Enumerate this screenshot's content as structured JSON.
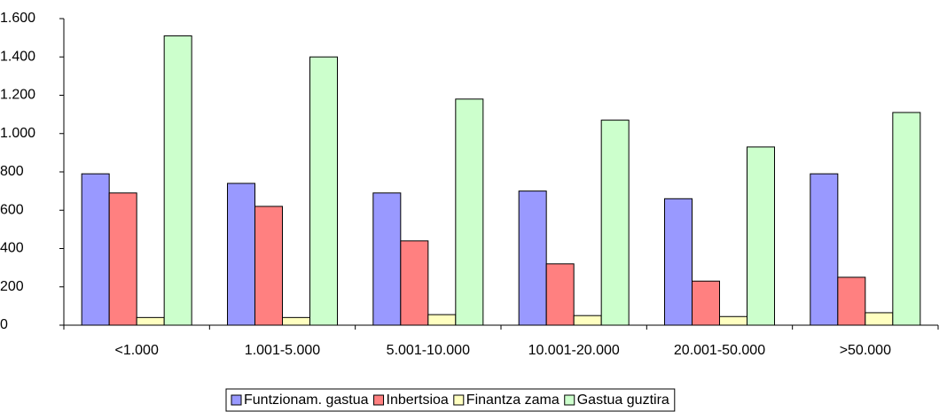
{
  "chart_data": {
    "type": "bar",
    "categories": [
      "<1.000",
      "1.001-5.000",
      "5.001-10.000",
      "10.001-20.000",
      "20.001-50.000",
      ">50.000"
    ],
    "series": [
      {
        "name": "Funtzionam. gastua",
        "color": "#9999ff",
        "values": [
          790,
          740,
          690,
          700,
          660,
          790
        ]
      },
      {
        "name": "Inbertsioa",
        "color": "#ff8080",
        "values": [
          690,
          620,
          440,
          320,
          230,
          250
        ]
      },
      {
        "name": "Finantza zama",
        "color": "#ffffc0",
        "values": [
          40,
          40,
          55,
          50,
          45,
          65
        ]
      },
      {
        "name": "Gastua guztira",
        "color": "#ccffcc",
        "values": [
          1510,
          1400,
          1180,
          1070,
          930,
          1110
        ]
      }
    ],
    "ylim": [
      0,
      1600
    ],
    "yticks": [
      0,
      200,
      400,
      600,
      800,
      {
        "value": 1000,
        "label": "1.000"
      },
      {
        "value": 1200,
        "label": "1.200"
      },
      {
        "value": 1400,
        "label": "1.400"
      },
      {
        "value": 1600,
        "label": "1.600"
      }
    ],
    "grid": false,
    "legend": "bottom"
  }
}
